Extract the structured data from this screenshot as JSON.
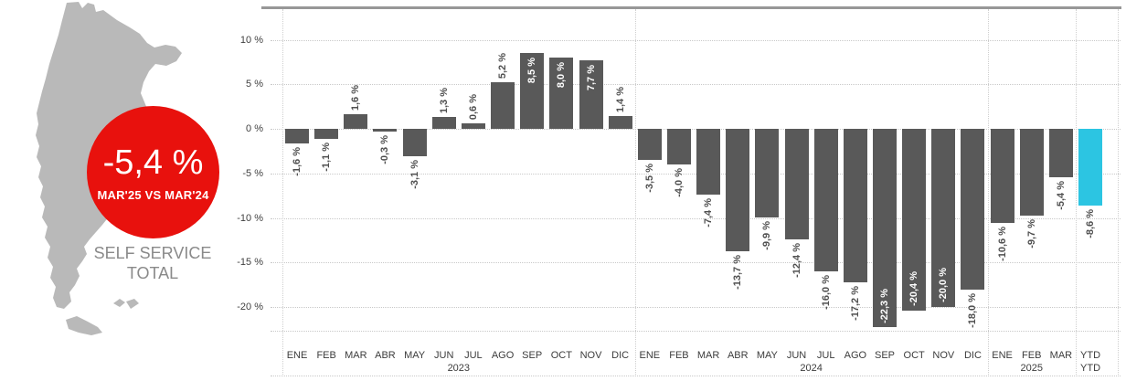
{
  "left_panel": {
    "map": "argentina-silhouette",
    "map_color": "#b9b9b9",
    "badge": {
      "value": "-5,4 %",
      "caption": "MAR'25 VS MAR'24",
      "color": "#e8110d",
      "text_color": "#ffffff"
    },
    "title_line1": "SELF SERVICE",
    "title_line2": "TOTAL"
  },
  "chart_data": {
    "type": "bar",
    "title": "",
    "xlabel": "",
    "ylabel": "",
    "ylim": [
      -23,
      13.5
    ],
    "grid": true,
    "legend": false,
    "bar_color": "#595959",
    "highlight_color": "#2cc5e2",
    "highlight_index": 27,
    "inside_label_indices": [
      8,
      9,
      10,
      20,
      21,
      22
    ],
    "group_boundaries": [
      0,
      12,
      24,
      27
    ],
    "yticks": [
      {
        "value": 10,
        "label": "10 %"
      },
      {
        "value": 5,
        "label": "5 %"
      },
      {
        "value": 0,
        "label": "0 %"
      },
      {
        "value": -5,
        "label": "-5 %"
      },
      {
        "value": -10,
        "label": "-10 %"
      },
      {
        "value": -15,
        "label": "-15 %"
      },
      {
        "value": -20,
        "label": "-20 %"
      }
    ],
    "categories": [
      "ENE",
      "FEB",
      "MAR",
      "ABR",
      "MAY",
      "JUN",
      "JUL",
      "AGO",
      "SEP",
      "OCT",
      "NOV",
      "DIC",
      "ENE",
      "FEB",
      "MAR",
      "ABR",
      "MAY",
      "JUN",
      "JUL",
      "AGO",
      "SEP",
      "OCT",
      "NOV",
      "DIC",
      "ENE",
      "FEB",
      "MAR",
      "YTD"
    ],
    "values": [
      -1.6,
      -1.1,
      1.6,
      -0.3,
      -3.1,
      1.3,
      0.6,
      5.2,
      8.5,
      8.0,
      7.7,
      1.4,
      -3.5,
      -4.0,
      -7.4,
      -13.7,
      -9.9,
      -12.4,
      -16.0,
      -17.2,
      -22.3,
      -20.4,
      -20.0,
      -18.0,
      -10.6,
      -9.7,
      -5.4,
      -8.6
    ],
    "value_labels": [
      "-1,6 %",
      "-1,1 %",
      "1,6 %",
      "-0,3 %",
      "-3,1 %",
      "1,3 %",
      "0,6 %",
      "5,2 %",
      "8,5 %",
      "8,0 %",
      "7,7 %",
      "1,4 %",
      "-3,5 %",
      "-4,0 %",
      "-7,4 %",
      "-13,7 %",
      "-9,9 %",
      "-12,4 %",
      "-16,0 %",
      "-17,2 %",
      "-22,3 %",
      "-20,4 %",
      "-20,0 %",
      "-18,0 %",
      "-10,6 %",
      "-9,7 %",
      "-5,4 %",
      "-8,6 %"
    ],
    "year_groups": [
      {
        "label": "2023",
        "center_index": 5.5
      },
      {
        "label": "2024",
        "center_index": 17.5
      },
      {
        "label": "2025",
        "center_index": 25
      },
      {
        "label": "YTD",
        "center_index": 27
      }
    ]
  }
}
